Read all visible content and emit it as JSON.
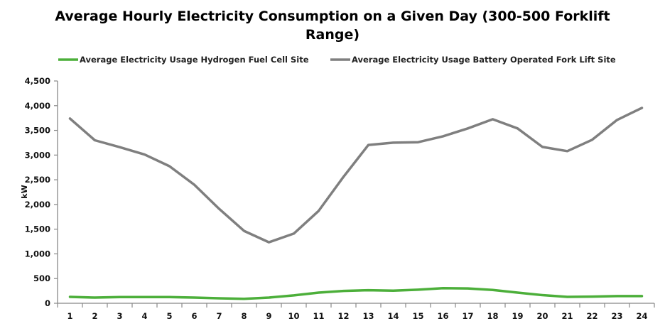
{
  "chart_data": {
    "type": "line",
    "title": "Average Hourly Electricity Consumption on a Given Day (300-500 Forklift Range)",
    "title_lines": [
      "Average Hourly Electricity Consumption on a Given Day (300-500 Forklift",
      "Range)"
    ],
    "xlabel": "",
    "ylabel": "kW",
    "ylim": [
      0,
      4500
    ],
    "yticks": [
      0,
      500,
      1000,
      1500,
      2000,
      2500,
      3000,
      3500,
      4000,
      4500
    ],
    "ytick_labels": [
      "0",
      "500",
      "1,000",
      "1,500",
      "2,000",
      "2,500",
      "3,000",
      "3,500",
      "4,000",
      "4,500"
    ],
    "grid": false,
    "legend_position": "top",
    "categories": [
      "1",
      "2",
      "3",
      "4",
      "5",
      "6",
      "7",
      "8",
      "9",
      "10",
      "11",
      "12",
      "13",
      "14",
      "15",
      "16",
      "17",
      "18",
      "19",
      "20",
      "21",
      "22",
      "23",
      "24"
    ],
    "series": [
      {
        "name": "Average Electricity Usage Hydrogen Fuel Cell Site",
        "color": "#4CAF3A",
        "values": [
          130,
          115,
          125,
          125,
          125,
          115,
          100,
          90,
          115,
          160,
          215,
          250,
          265,
          255,
          275,
          305,
          300,
          270,
          215,
          165,
          130,
          135,
          145,
          145
        ]
      },
      {
        "name": "Average Electricity Usage Battery Operated Fork Lift Site",
        "color": "#7F7F7F",
        "values": [
          3740,
          3300,
          3160,
          3010,
          2775,
          2400,
          1910,
          1465,
          1235,
          1410,
          1870,
          2560,
          3205,
          3250,
          3260,
          3380,
          3540,
          3725,
          3540,
          3165,
          3080,
          3310,
          3710,
          3955
        ]
      }
    ]
  }
}
